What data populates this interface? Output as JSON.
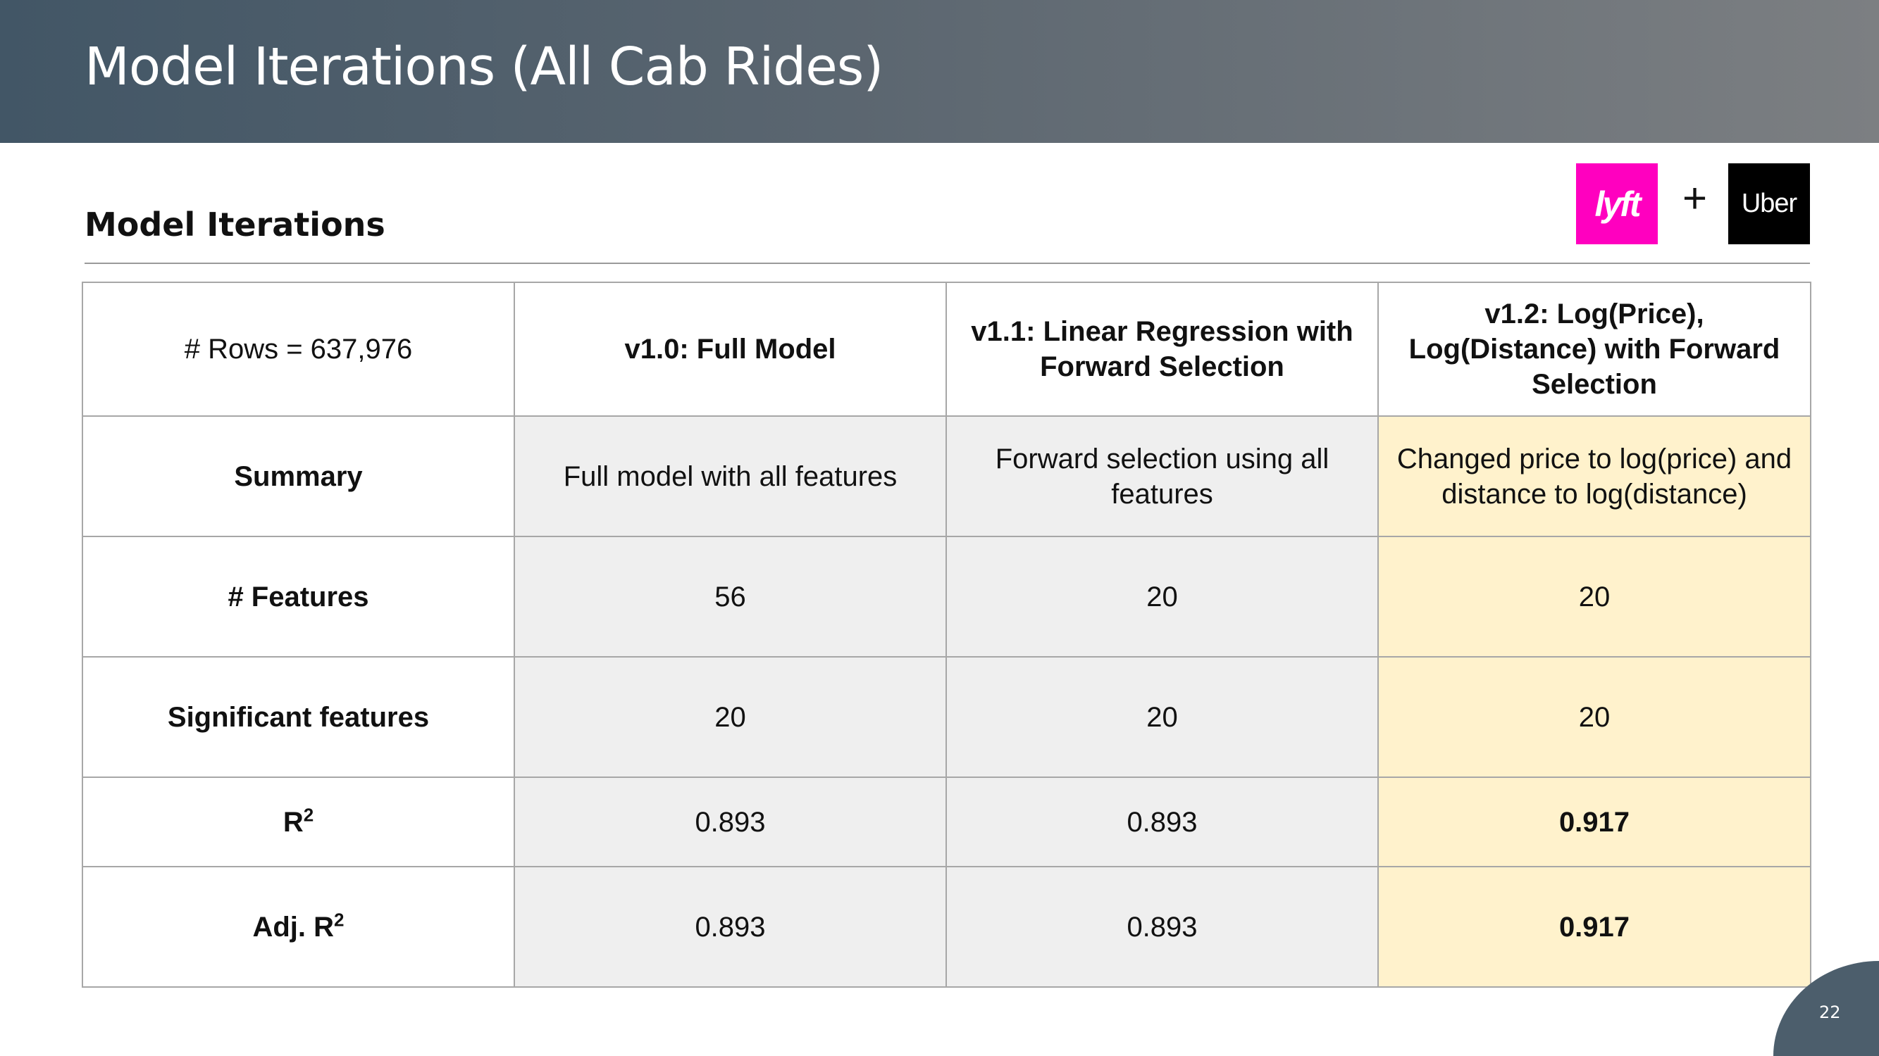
{
  "slide": {
    "title": "Model Iterations (All Cab Rides)",
    "section_title": "Model Iterations",
    "page_number": "22",
    "plus": "+",
    "logos": {
      "lyft": "lyft",
      "uber": "Uber"
    }
  },
  "colors": {
    "header_label": "#1f3f7a",
    "gray_cell": "#efefef",
    "highlight_cell": "#fff2cc",
    "lyft_brand": "#ff00bf",
    "uber_brand": "#000000"
  },
  "table": {
    "corner": "# Rows = 637,976",
    "columns": [
      "v1.0: Full Model",
      "v1.1: Linear Regression with Forward Selection",
      "v1.2: Log(Price), Log(Distance) with Forward Selection"
    ],
    "rows": [
      {
        "label": "Summary",
        "cells": [
          "Full model with all features",
          "Forward selection using all features",
          "Changed price to log(price) and distance to log(distance)"
        ]
      },
      {
        "label": "# Features",
        "cells": [
          "56",
          "20",
          "20"
        ]
      },
      {
        "label": "Significant features",
        "cells": [
          "20",
          "20",
          "20"
        ]
      },
      {
        "label": "R",
        "sup": "2",
        "cells": [
          "0.893",
          "0.893",
          "0.917"
        ]
      },
      {
        "label": "Adj. R",
        "sup": "2",
        "cells": [
          "0.893",
          "0.893",
          "0.917"
        ]
      }
    ]
  }
}
